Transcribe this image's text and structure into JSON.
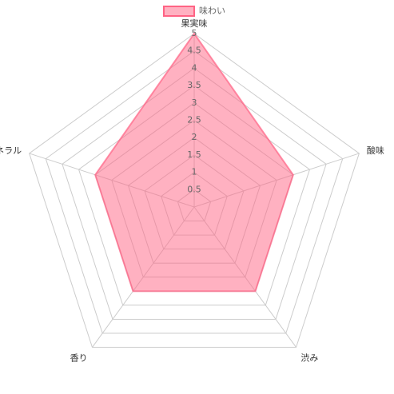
{
  "chart_data": {
    "type": "radar",
    "categories": [
      "果実味",
      "酸味",
      "渋み",
      "香り",
      "ミネラル"
    ],
    "series": [
      {
        "name": "味わい",
        "color": "#ff6384",
        "values": [
          5,
          3,
          3,
          3,
          3
        ]
      }
    ],
    "rlim": [
      0,
      5
    ],
    "rticks": [
      0.5,
      1,
      1.5,
      2,
      2.5,
      3,
      3.5,
      4,
      4.5,
      5
    ],
    "grid": true,
    "legend": "top"
  }
}
